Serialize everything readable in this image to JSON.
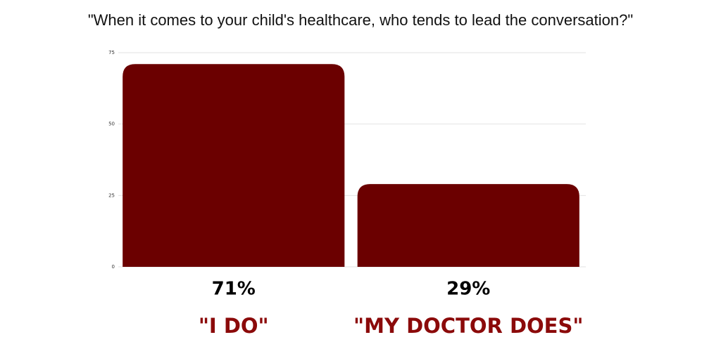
{
  "chart_data": {
    "type": "bar",
    "title": "\"When it comes to your child's healthcare, who tends to lead the conversation?\"",
    "categories": [
      "\"I DO\"",
      "\"MY DOCTOR DOES\""
    ],
    "values": [
      71,
      29
    ],
    "value_labels": [
      "71%",
      "29%"
    ],
    "color": "#6b0000",
    "ylim": [
      0,
      75
    ],
    "yticks": [
      0,
      25,
      50,
      75
    ],
    "grid": true
  }
}
